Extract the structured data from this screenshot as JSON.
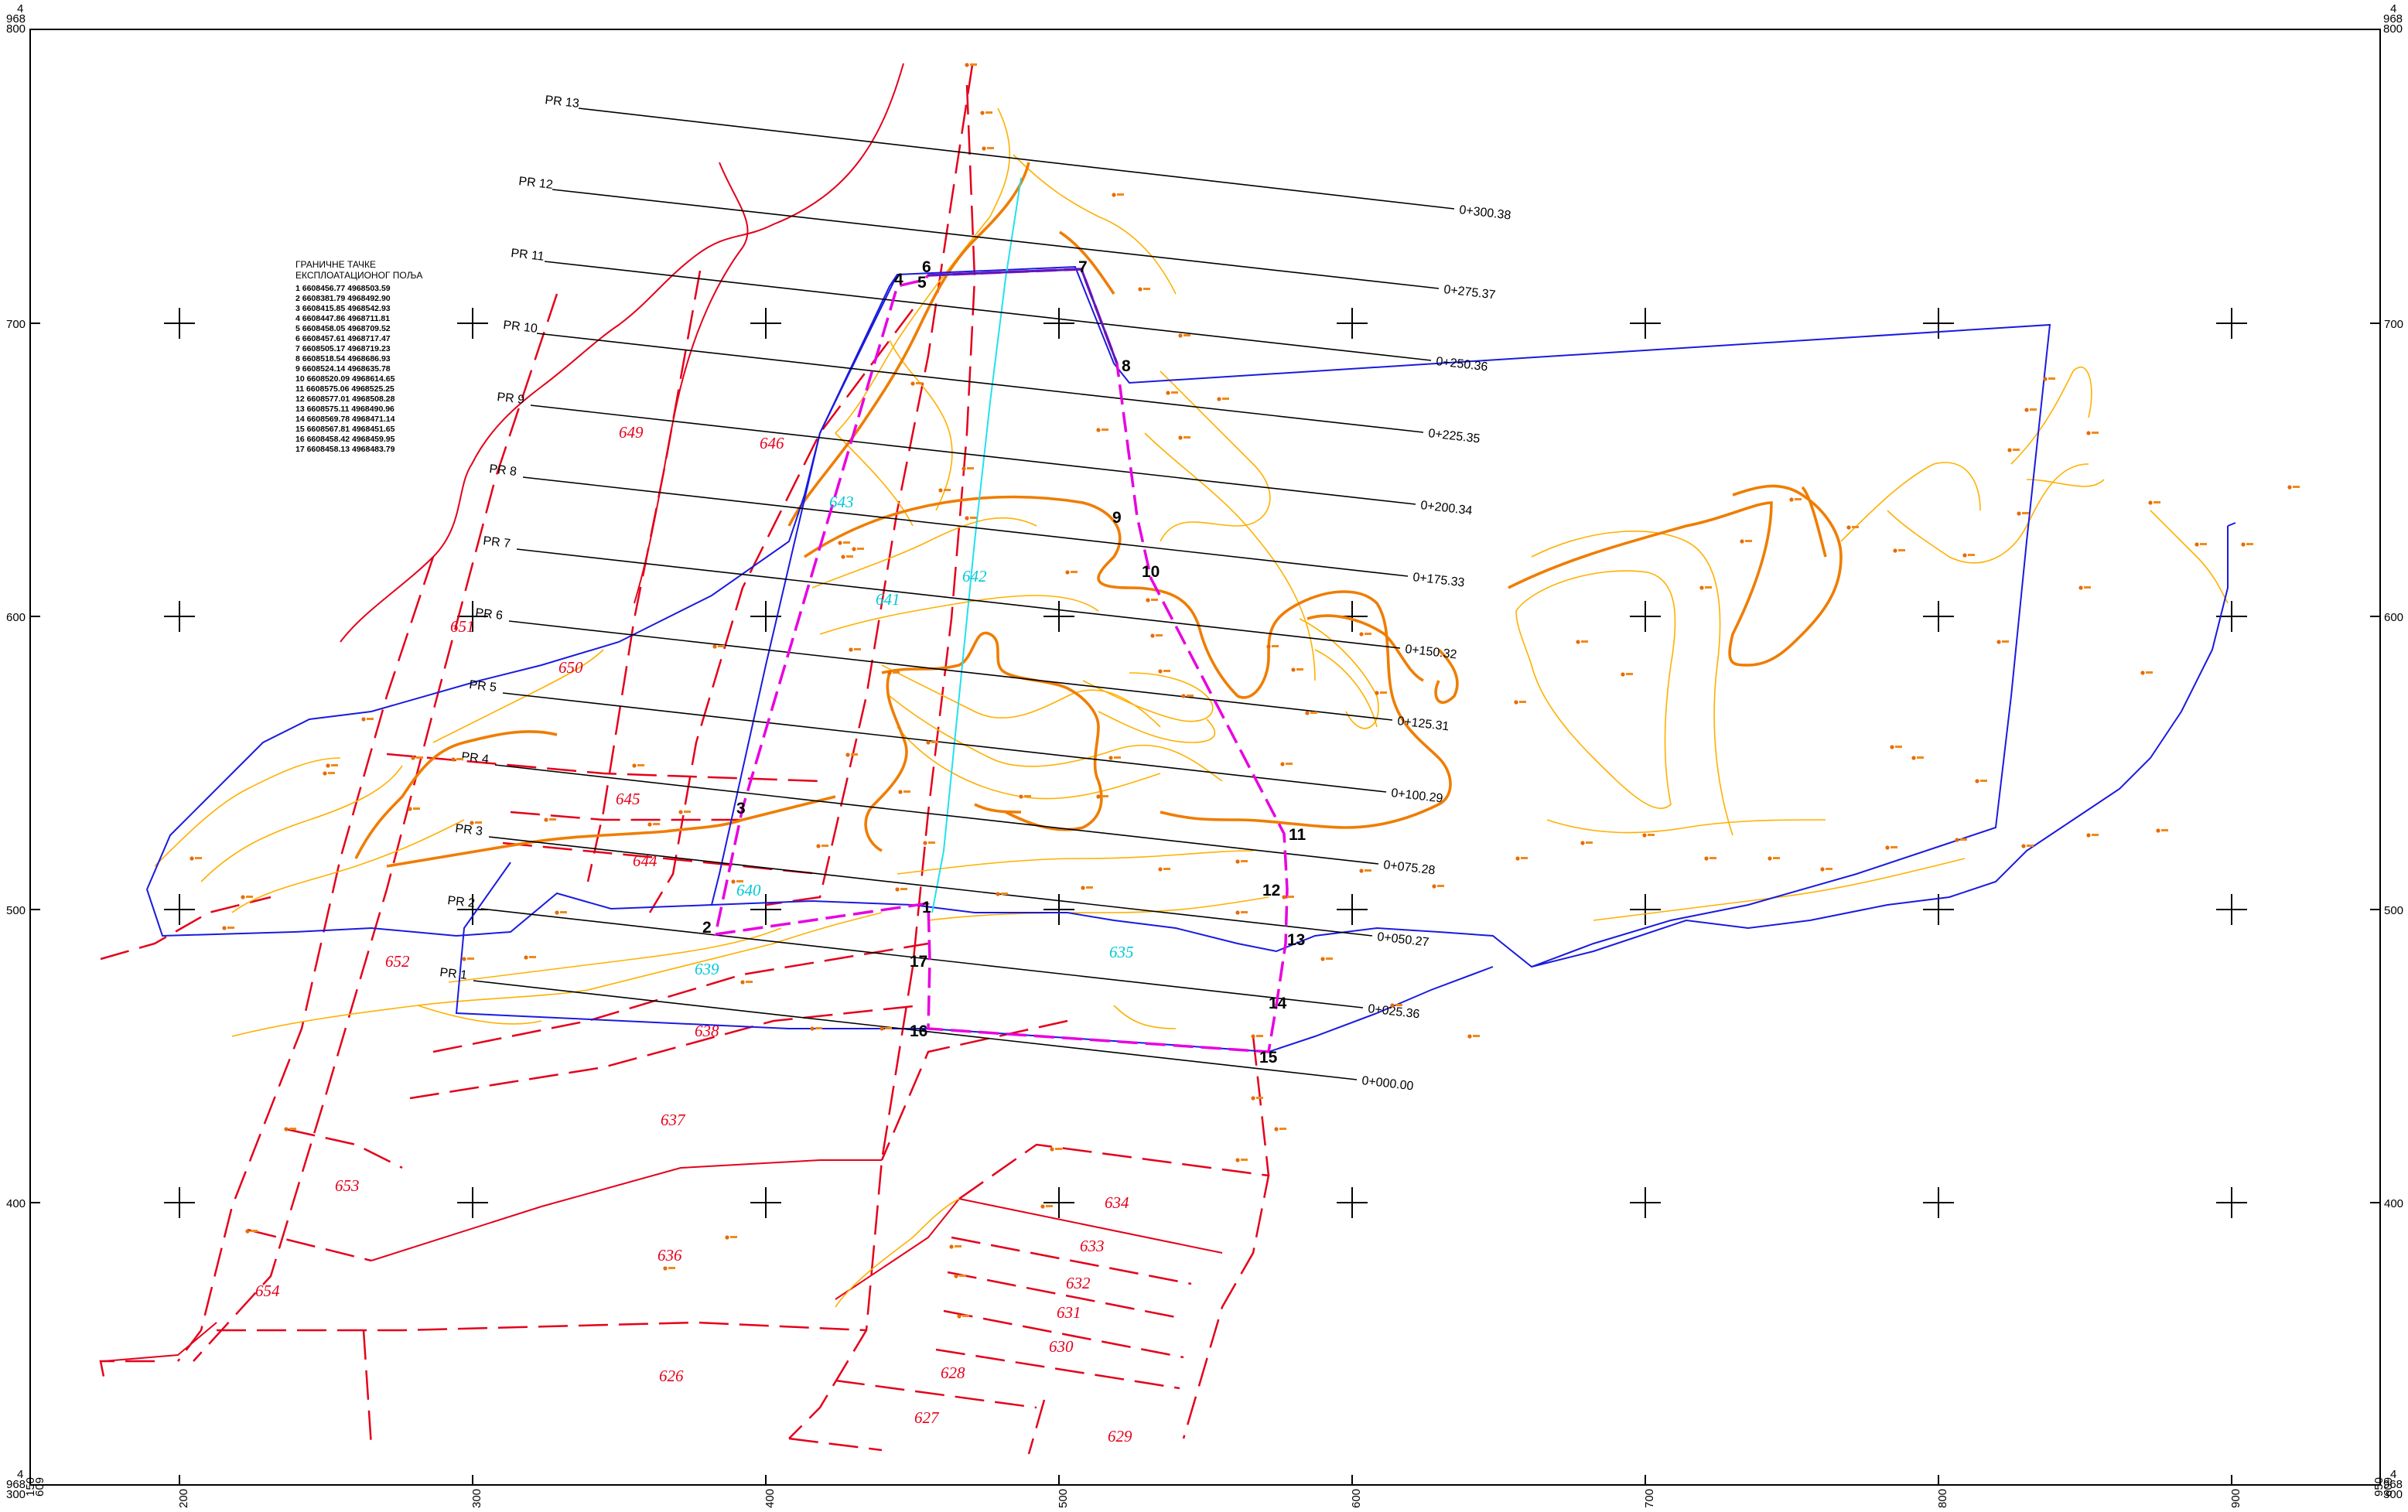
{
  "grid": {
    "corner_top_left": [
      "4",
      "968",
      "800"
    ],
    "corner_top_right": [
      "4",
      "968",
      "800"
    ],
    "corner_bottom_left": [
      "4",
      "968",
      "300"
    ],
    "corner_bottom_right": [
      "4",
      "968",
      "300"
    ],
    "corner_bottom_left_x": [
      "6",
      "609",
      "150"
    ],
    "corner_bottom_right_x": [
      "6",
      "609",
      "950"
    ],
    "y_ticks": [
      "700",
      "600",
      "500",
      "400"
    ],
    "x_ticks": [
      "200",
      "300",
      "400",
      "500",
      "600",
      "700",
      "800",
      "900"
    ]
  },
  "legend": {
    "title_line1": "ГРАНИЧНЕ ТАЧКЕ",
    "title_line2": "ЕКСПЛОАТАЦИОНОГ ПОЉА",
    "rows": [
      "1  6608456.77  4968503.59",
      "2  6608381.79  4968492.90",
      "3  6608415.85  4968542.93",
      "4  6608447.86  4968711.81",
      "5  6608458.05  4968709.52",
      "6  6608457.61  4968717.47",
      "7  6608505.17  4968719.23",
      "8  6608518.54  4968686.93",
      "9  6608524.14  4968635.78",
      "10 6608520.09  4968614.65",
      "11 6608575.06  4968525.25",
      "12 6608577.01  4968508.28",
      "13 6608575.11  4968490.96",
      "14 6608569.78  4968471.14",
      "15 6608567.81  4968451.65",
      "16 6608458.42  4968459.95",
      "17 6608458.13  4968483.79"
    ]
  },
  "profiles": [
    {
      "name": "PR 1",
      "station": "0+000.00"
    },
    {
      "name": "PR 2",
      "station": "0+025.36"
    },
    {
      "name": "PR 3",
      "station": "0+050.27"
    },
    {
      "name": "PR 4",
      "station": "0+075.28"
    },
    {
      "name": "PR 5",
      "station": "0+100.29"
    },
    {
      "name": "PR 6",
      "station": "0+125.31"
    },
    {
      "name": "PR 7",
      "station": "0+150.32"
    },
    {
      "name": "PR 8",
      "station": "0+175.33"
    },
    {
      "name": "PR 9",
      "station": "0+200.34"
    },
    {
      "name": "PR 10",
      "station": "0+225.35"
    },
    {
      "name": "PR 11",
      "station": "0+250.36"
    },
    {
      "name": "PR 12",
      "station": "0+275.37"
    },
    {
      "name": "PR 13",
      "station": "0+300.38"
    }
  ],
  "boundary_points": [
    "1",
    "2",
    "3",
    "4",
    "5",
    "6",
    "7",
    "8",
    "9",
    "10",
    "11",
    "12",
    "13",
    "14",
    "15",
    "16",
    "17"
  ],
  "parcels_red": [
    "649",
    "646",
    "651",
    "650",
    "645",
    "644",
    "652",
    "638",
    "637",
    "653",
    "636",
    "654",
    "626",
    "634",
    "633",
    "632",
    "631",
    "630",
    "628",
    "627",
    "629"
  ],
  "parcels_cyan": [
    "643",
    "641",
    "642",
    "640",
    "639",
    "635"
  ],
  "colors": {
    "boundary": "#e800e0",
    "parcel_lines": "#e4001b",
    "field_outline": "#1a1ae0",
    "contour_major": "#ef7d00",
    "contour_minor": "#ffb000",
    "axis_line": "#21e1ee"
  }
}
